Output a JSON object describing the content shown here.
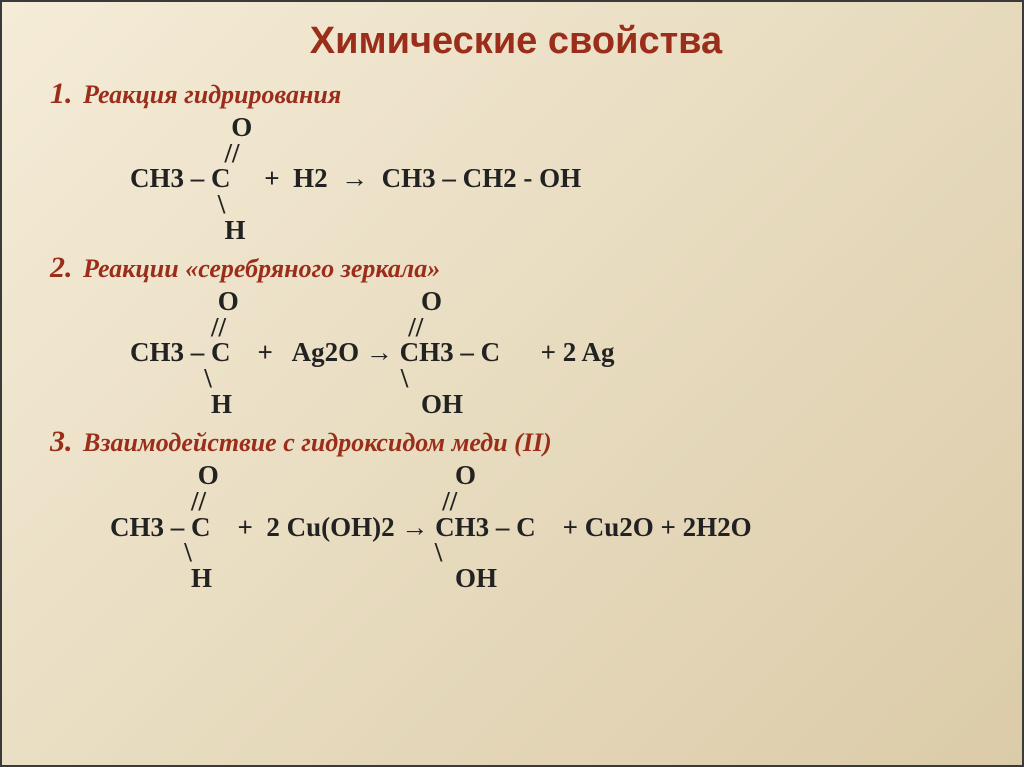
{
  "title": "Химические свойства",
  "sections": [
    {
      "num": "1.",
      "heading": "Реакция гидрирования",
      "equation_lines": [
        "               O",
        "              //",
        "CH3 – C     +  H2  →  CH3 – CH2 - OH",
        "             \\",
        "              H"
      ],
      "eq_class": ""
    },
    {
      "num": "2.",
      "heading": "Реакции «серебряного зеркала»",
      "equation_lines": [
        "             O                           O",
        "            //                           //",
        "CH3 – C    +   Ag2O → CH3 – C      + 2 Ag",
        "           \\                            \\",
        "            H                            OH"
      ],
      "eq_class": ""
    },
    {
      "num": "3.",
      "heading": "Взаимодействие с гидроксидом меди (II)",
      "equation_lines": [
        "             O                                   O",
        "            //                                   //",
        "CH3 – C    +  2 Cu(OH)2 → CH3 – C    + Cu2O + 2H2O",
        "           \\                                    \\",
        "            H                                    OH"
      ],
      "eq_class": "eq-wide"
    }
  ],
  "colors": {
    "title": "#9b2e1a",
    "heading": "#9b2e1a",
    "text": "#222222",
    "bg_start": "#f5ecd8",
    "bg_end": "#dbcba8"
  },
  "fonts": {
    "title_size": 38,
    "heading_size": 26,
    "equation_size": 27
  }
}
